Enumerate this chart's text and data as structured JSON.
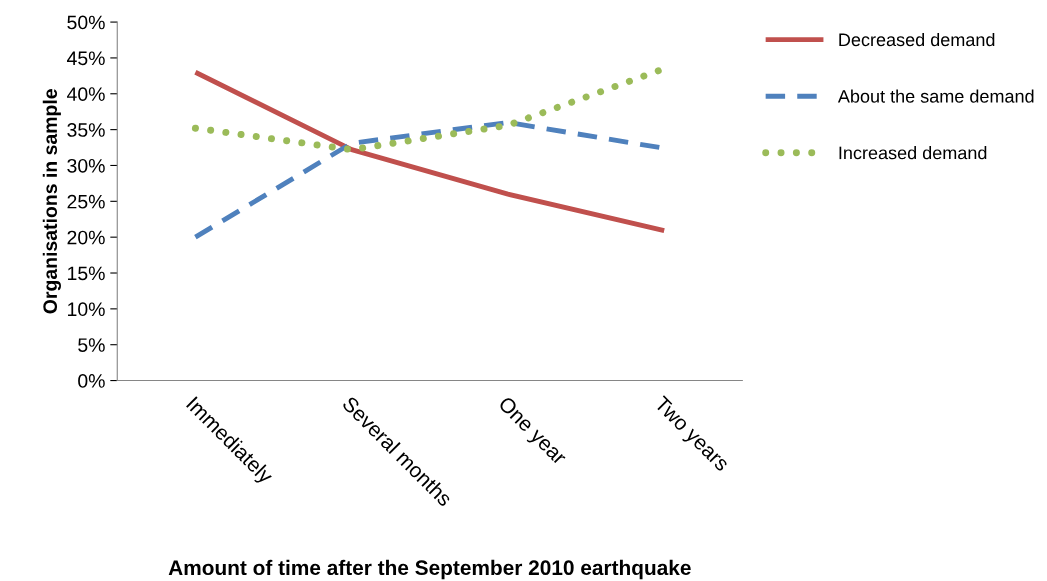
{
  "chart_data": {
    "type": "line",
    "xlabel": "Amount of time after the September 2010 earthquake",
    "ylabel": "Organisations in sample",
    "categories": [
      "Immediately",
      "Several months",
      "One year",
      "Two years"
    ],
    "series": [
      {
        "name": "Decreased demand",
        "color": "#c0504d",
        "line_style": "solid",
        "values": [
          43.0,
          32.2,
          26.0,
          20.9
        ]
      },
      {
        "name": "About the same demand",
        "color": "#4f81bd",
        "line_style": "dashed",
        "values": [
          20.0,
          33.1,
          36.0,
          32.4
        ]
      },
      {
        "name": "Increased demand",
        "color": "#9bbb59",
        "line_style": "dotted",
        "values": [
          35.2,
          32.2,
          35.6,
          43.5
        ]
      }
    ],
    "ylim": [
      0,
      50
    ],
    "yticks": [
      {
        "value": 0,
        "label": "0%"
      },
      {
        "value": 5,
        "label": "5%"
      },
      {
        "value": 10,
        "label": "10%"
      },
      {
        "value": 15,
        "label": "15%"
      },
      {
        "value": 20,
        "label": "20%"
      },
      {
        "value": 25,
        "label": "25%"
      },
      {
        "value": 30,
        "label": "30%"
      },
      {
        "value": 35,
        "label": "35%"
      },
      {
        "value": 40,
        "label": "40%"
      },
      {
        "value": 45,
        "label": "45%"
      },
      {
        "value": 50,
        "label": "50%"
      }
    ],
    "grid": false,
    "legend": "right",
    "marker": "none"
  }
}
